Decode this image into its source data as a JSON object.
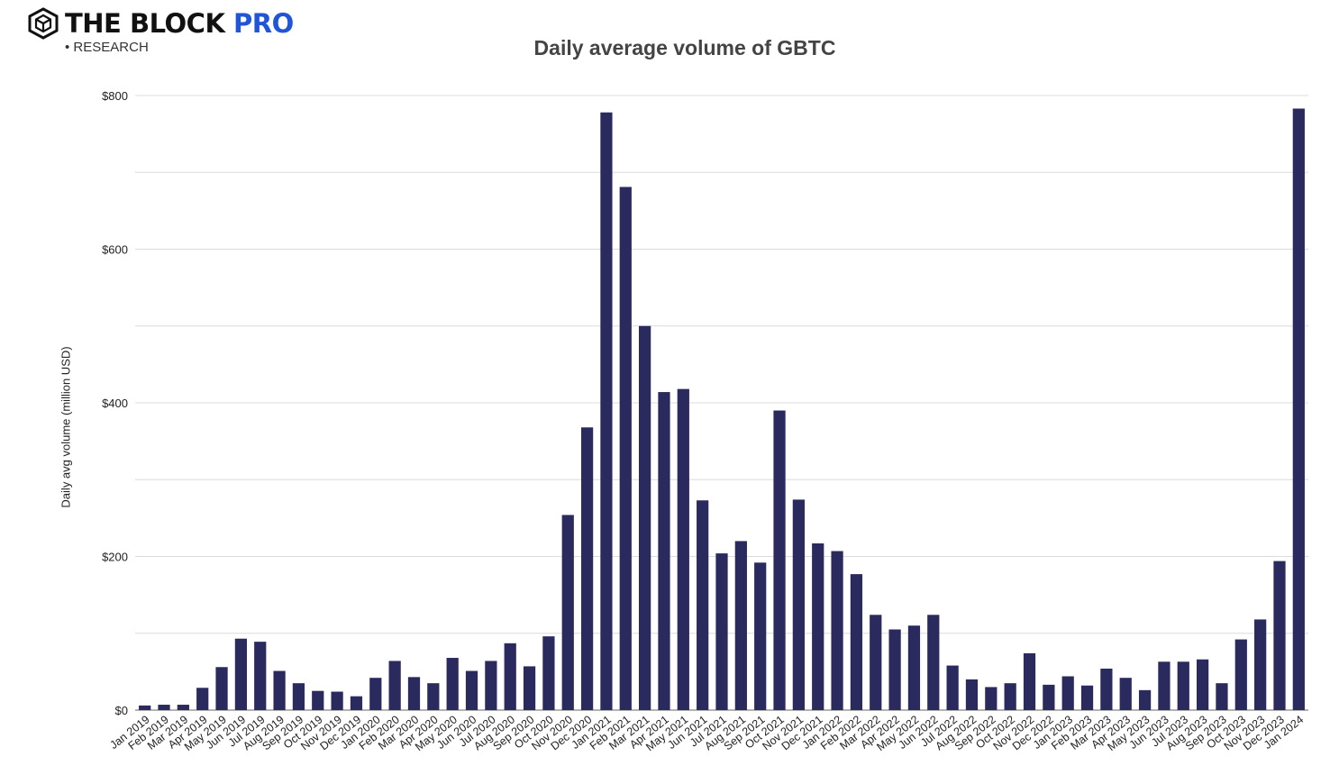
{
  "brand": {
    "name": "THE BLOCK",
    "accent": "PRO",
    "sub": "RESEARCH",
    "accent_color": "#1f55d6",
    "icon": "cube-logo-icon"
  },
  "chart_data": {
    "type": "bar",
    "title": "Daily average volume of GBTC",
    "xlabel": "",
    "ylabel": "Daily avg volume (million USD)",
    "ylim": [
      0,
      800
    ],
    "yticks": [
      0,
      200,
      400,
      600,
      800
    ],
    "ytick_labels": [
      "$0",
      "$200",
      "$400",
      "$600",
      "$800"
    ],
    "grid": true,
    "bar_color": "#2b2a5e",
    "categories": [
      "Jan 2019",
      "Feb 2019",
      "Mar 2019",
      "Apr 2019",
      "May 2019",
      "Jun 2019",
      "Jul 2019",
      "Aug 2019",
      "Sep 2019",
      "Oct 2019",
      "Nov 2019",
      "Dec 2019",
      "Jan 2020",
      "Feb 2020",
      "Mar 2020",
      "Apr 2020",
      "May 2020",
      "Jun 2020",
      "Jul 2020",
      "Aug 2020",
      "Sep 2020",
      "Oct 2020",
      "Nov 2020",
      "Dec 2020",
      "Jan 2021",
      "Feb 2021",
      "Mar 2021",
      "Apr 2021",
      "May 2021",
      "Jun 2021",
      "Jul 2021",
      "Aug 2021",
      "Sep 2021",
      "Oct 2021",
      "Nov 2021",
      "Dec 2021",
      "Jan 2022",
      "Feb 2022",
      "Mar 2022",
      "Apr 2022",
      "May 2022",
      "Jun 2022",
      "Jul 2022",
      "Aug 2022",
      "Sep 2022",
      "Oct 2022",
      "Nov 2022",
      "Dec 2022",
      "Jan 2023",
      "Feb 2023",
      "Mar 2023",
      "Apr 2023",
      "May 2023",
      "Jun 2023",
      "Jul 2023",
      "Aug 2023",
      "Sep 2023",
      "Oct 2023",
      "Nov 2023",
      "Dec 2023",
      "Jan 2024"
    ],
    "x_tick_labels": [
      "Jan 2019",
      "Feb 2019",
      "Mar 2019",
      "Apr 2019",
      "May 2019",
      "Jun 2019",
      "Jul 2019",
      "Aug 2019",
      "Sep 2019",
      "Oct 2019",
      "Nov 2019",
      "Dec 2019",
      "Jan 2020",
      "Feb 2020",
      "Mar 2020",
      "Apr 2020",
      "May 2020",
      "Jun 2020",
      "Jul 2020",
      "Aug 2020",
      "Sep 2020",
      "Oct 2020",
      "Nov 2020",
      "Dec 2020",
      "Jan 2021",
      "Feb 2021",
      "Mar 2021",
      "Apr 2021",
      "May 2021",
      "Jun 2021",
      "Jul 2021",
      "Aug 2021",
      "Sep 2021",
      "Oct 2021",
      "Nov 2021",
      "Dec 2021",
      "Jan 2022",
      "Feb 2022",
      "Mar 2022",
      "Apr 2022",
      "May 2022",
      "Jun 2022",
      "Jul 2022",
      "Aug 2022",
      "Sep 2022",
      "Oct 2022",
      "Nov 2022",
      "Dec 2022",
      "Jan 2023",
      "Feb 2023",
      "Mar 2023",
      "Apr 2023",
      "May 2023",
      "Jun 2023",
      "Jul 2023",
      "Aug 2023",
      "Sep 2023",
      "Oct 2023",
      "Nov 2023",
      "Dec 2023",
      "Jan 2024"
    ],
    "values": [
      6,
      7,
      7,
      29,
      56,
      93,
      89,
      51,
      35,
      25,
      24,
      18,
      42,
      64,
      43,
      35,
      68,
      51,
      64,
      87,
      57,
      96,
      254,
      368,
      778,
      681,
      500,
      414,
      418,
      273,
      204,
      220,
      192,
      390,
      274,
      217,
      207,
      177,
      124,
      105,
      110,
      124,
      58,
      40,
      30,
      35,
      74,
      33,
      44,
      32,
      54,
      42,
      26,
      63,
      63,
      66,
      35,
      92,
      118,
      194,
      783
    ]
  }
}
